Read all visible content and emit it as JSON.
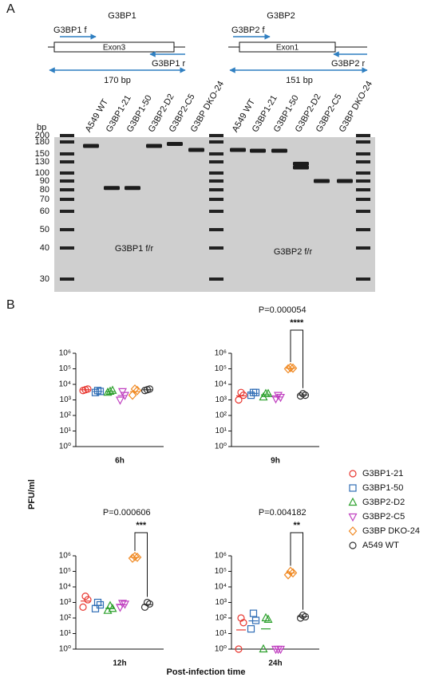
{
  "panel_a": {
    "label": "A",
    "genes": [
      {
        "title": "G3BP1",
        "exon": "Exon3",
        "forward": "G3BP1 f",
        "reverse": "G3BP1 r",
        "product": "170 bp"
      },
      {
        "title": "G3BP2",
        "exon": "Exon1",
        "forward": "G3BP2 f",
        "reverse": "G3BP2 r",
        "product": "151 bp"
      }
    ],
    "gel": {
      "unit": "bp",
      "ladder": [
        200,
        180,
        150,
        130,
        100,
        90,
        80,
        70,
        60,
        50,
        40,
        30
      ],
      "lanes": [
        {
          "name": "A549 WT",
          "bands": [
            170
          ]
        },
        {
          "name": "G3BP1-21",
          "bands": [
            82
          ]
        },
        {
          "name": "G3BP1-50",
          "bands": [
            82
          ]
        },
        {
          "name": "G3BP2-D2",
          "bands": [
            170
          ]
        },
        {
          "name": "G3BP2-C5",
          "bands": [
            175
          ]
        },
        {
          "name": "G3BP DKO-24",
          "bands": [
            160
          ]
        },
        {
          "name": "A549 WT",
          "bands": [
            160
          ]
        },
        {
          "name": "G3BP1-21",
          "bands": [
            158
          ]
        },
        {
          "name": "G3BP1-50",
          "bands": [
            158
          ]
        },
        {
          "name": "G3BP2-D2",
          "bands": [
            125,
            115
          ]
        },
        {
          "name": "G3BP2-C5",
          "bands": [
            90
          ]
        },
        {
          "name": "G3BP DKO-24",
          "bands": [
            90
          ]
        }
      ],
      "primer_labels": [
        "G3BP1 f/r",
        "G3BP2 f/r"
      ]
    }
  },
  "panel_b_label": "B",
  "ylabel": "PFU/ml",
  "xlabel": "Post-infection time",
  "groups": [
    {
      "name": "G3BP1-21",
      "color": "#e8362f",
      "marker": "circle"
    },
    {
      "name": "G3BP1-50",
      "color": "#2f6db5",
      "marker": "square"
    },
    {
      "name": "G3BP2-D2",
      "color": "#2ca02c",
      "marker": "triangle"
    },
    {
      "name": "G3BP2-C5",
      "color": "#c040c0",
      "marker": "triangle-down"
    },
    {
      "name": "G3BP DKO-24",
      "color": "#f08a24",
      "marker": "diamond"
    },
    {
      "name": "A549 WT",
      "color": "#333333",
      "marker": "circle"
    }
  ],
  "chart_data": [
    {
      "type": "scatter",
      "title": "6h",
      "log_y": true,
      "ylim": [
        1,
        1000000
      ],
      "yticks": [
        {
          "value": 1,
          "label": "10⁰"
        },
        {
          "value": 10,
          "label": "10¹"
        },
        {
          "value": 100,
          "label": "10²"
        },
        {
          "value": 1000,
          "label": "10³"
        },
        {
          "value": 10000,
          "label": "10⁴"
        },
        {
          "value": 100000,
          "label": "10⁵"
        },
        {
          "value": 1000000,
          "label": "10⁶"
        }
      ],
      "series": [
        {
          "values": [
            4000,
            5000,
            4500
          ]
        },
        {
          "values": [
            3000,
            3500,
            4000
          ]
        },
        {
          "values": [
            3000,
            4000,
            3500
          ]
        },
        {
          "values": [
            1000,
            2000,
            3500
          ]
        },
        {
          "values": [
            2000,
            4000,
            5000
          ]
        },
        {
          "values": [
            4000,
            5000,
            4500
          ]
        }
      ]
    },
    {
      "type": "scatter",
      "title": "9h",
      "log_y": true,
      "ylim": [
        1,
        1000000
      ],
      "yticks": [
        {
          "value": 1,
          "label": "10⁰"
        },
        {
          "value": 10,
          "label": "10¹"
        },
        {
          "value": 100,
          "label": "10²"
        },
        {
          "value": 1000,
          "label": "10³"
        },
        {
          "value": 10000,
          "label": "10⁴"
        },
        {
          "value": 100000,
          "label": "10⁵"
        },
        {
          "value": 1000000,
          "label": "10⁶"
        }
      ],
      "series": [
        {
          "values": [
            1000,
            2000,
            3000
          ]
        },
        {
          "values": [
            2000,
            3000,
            3000
          ]
        },
        {
          "values": [
            1500,
            2500,
            2500
          ]
        },
        {
          "values": [
            1200,
            1500,
            2000
          ]
        },
        {
          "values": [
            100000,
            110000,
            120000
          ]
        },
        {
          "values": [
            1800,
            2000,
            2500
          ]
        }
      ],
      "annotation": {
        "p": "P=0.000054",
        "stars": "****"
      }
    },
    {
      "type": "scatter",
      "title": "12h",
      "log_y": true,
      "ylim": [
        1,
        1000000
      ],
      "yticks": [
        {
          "value": 1,
          "label": "10⁰"
        },
        {
          "value": 10,
          "label": "10¹"
        },
        {
          "value": 100,
          "label": "10²"
        },
        {
          "value": 1000,
          "label": "10³"
        },
        {
          "value": 10000,
          "label": "10⁴"
        },
        {
          "value": 100000,
          "label": "10⁵"
        },
        {
          "value": 1000000,
          "label": "10⁶"
        }
      ],
      "series": [
        {
          "values": [
            500,
            1500,
            2500
          ]
        },
        {
          "values": [
            400,
            700,
            1000
          ]
        },
        {
          "values": [
            300,
            400,
            600
          ]
        },
        {
          "values": [
            500,
            800,
            900
          ]
        },
        {
          "values": [
            700000,
            800000,
            900000
          ]
        },
        {
          "values": [
            500,
            800,
            1000
          ]
        }
      ],
      "annotation": {
        "p": "P=0.000606",
        "stars": "***"
      }
    },
    {
      "type": "scatter",
      "title": "24h",
      "log_y": true,
      "ylim": [
        1,
        1000000
      ],
      "yticks": [
        {
          "value": 1,
          "label": "10⁰"
        },
        {
          "value": 10,
          "label": "10¹"
        },
        {
          "value": 100,
          "label": "10²"
        },
        {
          "value": 1000,
          "label": "10³"
        },
        {
          "value": 10000,
          "label": "10⁴"
        },
        {
          "value": 100000,
          "label": "10⁵"
        },
        {
          "value": 1000000,
          "label": "10⁶"
        }
      ],
      "series": [
        {
          "values": [
            1,
            50,
            100
          ]
        },
        {
          "values": [
            20,
            70,
            200
          ]
        },
        {
          "values": [
            1,
            80,
            100
          ]
        },
        {
          "values": [
            1,
            1,
            1
          ]
        },
        {
          "values": [
            60000,
            80000,
            100000
          ]
        },
        {
          "values": [
            100,
            120,
            150
          ]
        }
      ],
      "annotation": {
        "p": "P=0.004182",
        "stars": "**"
      }
    }
  ]
}
